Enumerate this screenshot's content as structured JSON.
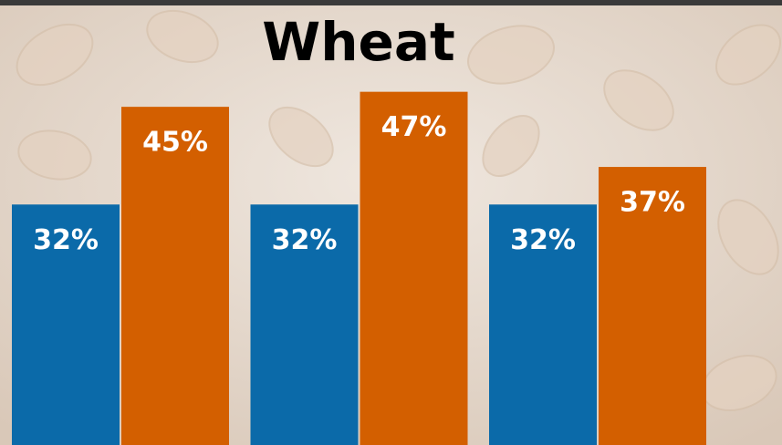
{
  "chart_data": {
    "type": "bar",
    "title": "Wheat",
    "categories": [
      null,
      null,
      null
    ],
    "series": [
      {
        "color": "#0b6aa9",
        "values": [
          32,
          32,
          32
        ],
        "value_labels": [
          "32%",
          "32%",
          "32%"
        ]
      },
      {
        "color": "#d35f00",
        "values": [
          45,
          47,
          37
        ],
        "value_labels": [
          "45%",
          "47%",
          "37%"
        ]
      }
    ],
    "ylim": [
      0,
      58
    ]
  }
}
